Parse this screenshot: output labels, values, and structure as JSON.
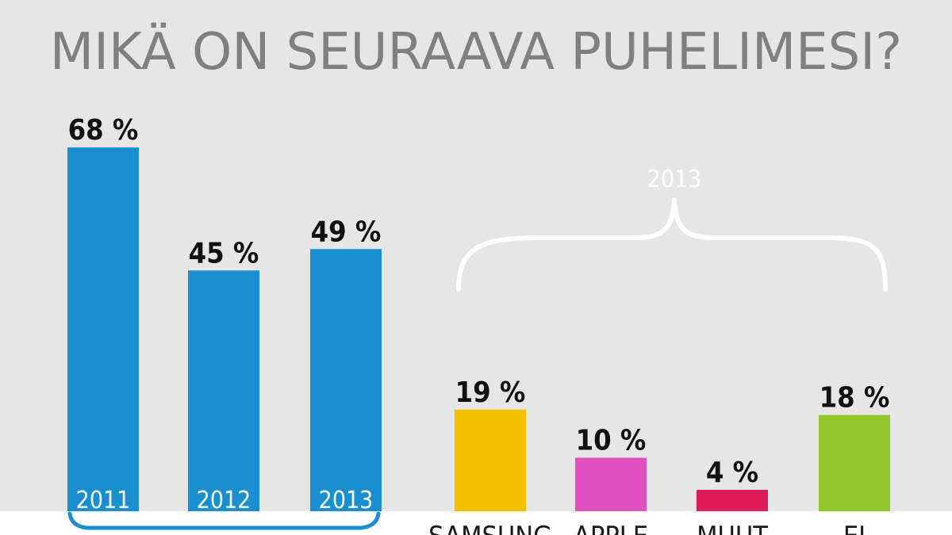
{
  "chart_data": {
    "type": "bar",
    "title": "MIKÄ ON SEURAAVA PUHELIMESI?",
    "ylim": [
      0,
      75
    ],
    "groups": [
      {
        "name": "trend",
        "categories": [
          "2011",
          "2012",
          "2013"
        ],
        "values": [
          68,
          45,
          49
        ],
        "value_labels": [
          "68 %",
          "45 %",
          "49 %"
        ],
        "color": "#1a8fd0"
      },
      {
        "name": "brands",
        "bracket_label": "2013",
        "categories": [
          "SAMSUNG",
          "APPLE",
          "MUUT",
          "EI"
        ],
        "values": [
          19,
          10,
          4,
          18
        ],
        "value_labels": [
          "19 %",
          "10 %",
          "4 %",
          "18 %"
        ],
        "colors": [
          "#f5c000",
          "#e24fbf",
          "#dd1a5a",
          "#93c52d"
        ]
      }
    ],
    "colors": {
      "background": "#e6e6e6",
      "footer": "#ffffff",
      "title": "#808080",
      "value_text": "#111111",
      "bracket": "#ffffff"
    }
  }
}
